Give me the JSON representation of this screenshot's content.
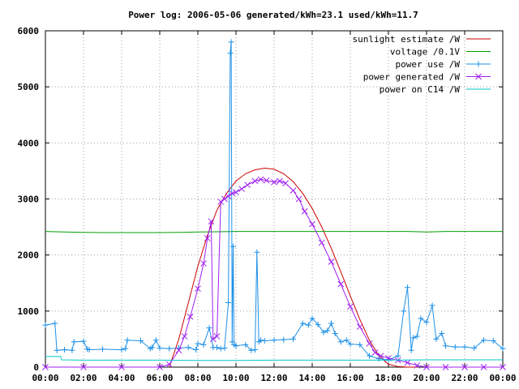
{
  "chart_data": {
    "type": "line",
    "title": "Power log: 2006-05-06 generated/kWh=23.1 used/kWh=11.7",
    "xlabel": "",
    "ylabel": "",
    "xlim": [
      0,
      24
    ],
    "ylim": [
      0,
      6000
    ],
    "x_ticks": [
      "00:00",
      "02:00",
      "04:00",
      "06:00",
      "08:00",
      "10:00",
      "12:00",
      "14:00",
      "16:00",
      "18:00",
      "20:00",
      "22:00",
      "00:00"
    ],
    "y_ticks": [
      "0",
      "1000",
      "2000",
      "3000",
      "4000",
      "5000",
      "6000"
    ],
    "grid": true,
    "legend_position": "top-right",
    "series": [
      {
        "name": "sunlight estimate /W",
        "color": "#cc0000",
        "marker": "none",
        "x": [
          6.5,
          7.0,
          7.5,
          8.0,
          8.5,
          9.0,
          9.5,
          10.0,
          10.5,
          11.0,
          11.5,
          12.0,
          12.5,
          13.0,
          13.5,
          14.0,
          14.5,
          15.0,
          15.5,
          16.0,
          16.5,
          17.0,
          17.5,
          18.0,
          18.5,
          19.0,
          19.5
        ],
        "y": [
          0,
          500,
          1150,
          1800,
          2350,
          2800,
          3100,
          3320,
          3450,
          3520,
          3550,
          3530,
          3450,
          3310,
          3100,
          2830,
          2500,
          2120,
          1700,
          1270,
          850,
          480,
          200,
          50,
          10,
          0,
          0
        ]
      },
      {
        "name": "voltage /0.1V",
        "color": "#00a000",
        "marker": "none",
        "x": [
          0,
          1,
          2,
          3,
          4,
          5,
          6,
          7,
          8,
          9,
          10,
          11,
          12,
          13,
          14,
          15,
          16,
          17,
          18,
          19,
          20,
          21,
          22,
          23,
          24
        ],
        "y": [
          2420,
          2410,
          2405,
          2400,
          2400,
          2400,
          2400,
          2405,
          2410,
          2415,
          2420,
          2420,
          2420,
          2420,
          2420,
          2420,
          2420,
          2420,
          2420,
          2420,
          2410,
          2420,
          2420,
          2420,
          2420
        ]
      },
      {
        "name": "power use /W",
        "color": "#1e90e6",
        "marker": "plus",
        "x": [
          0,
          0.5,
          0.6,
          1.0,
          1.4,
          1.5,
          2.0,
          2.2,
          2.3,
          3.0,
          4.0,
          4.2,
          4.3,
          5.0,
          5.5,
          5.6,
          5.8,
          6.0,
          6.5,
          7.0,
          7.5,
          7.9,
          8.0,
          8.3,
          8.6,
          8.8,
          9.0,
          9.2,
          9.4,
          9.6,
          9.7,
          9.75,
          9.8,
          9.85,
          9.9,
          10.0,
          10.5,
          10.8,
          11.0,
          11.1,
          11.2,
          11.3,
          11.5,
          12.0,
          12.5,
          13.0,
          13.5,
          13.8,
          14.0,
          14.3,
          14.6,
          14.8,
          15.0,
          15.2,
          15.5,
          15.8,
          16.0,
          16.5,
          17.0,
          17.5,
          18.0,
          18.5,
          18.8,
          19.0,
          19.2,
          19.3,
          19.5,
          19.7,
          20.0,
          20.3,
          20.5,
          20.8,
          21.0,
          21.5,
          22.0,
          22.5,
          23.0,
          23.5,
          24.0
        ],
        "y": [
          750,
          780,
          300,
          310,
          300,
          450,
          460,
          320,
          310,
          320,
          310,
          330,
          480,
          470,
          330,
          350,
          480,
          340,
          330,
          340,
          350,
          310,
          420,
          400,
          700,
          350,
          350,
          330,
          340,
          1150,
          5600,
          5800,
          450,
          2150,
          400,
          380,
          400,
          300,
          310,
          2050,
          450,
          480,
          470,
          480,
          490,
          500,
          780,
          750,
          870,
          760,
          620,
          650,
          780,
          600,
          450,
          480,
          410,
          400,
          200,
          150,
          130,
          200,
          1000,
          1420,
          300,
          520,
          550,
          870,
          800,
          1100,
          500,
          600,
          380,
          360,
          360,
          340,
          480,
          470,
          330
        ]
      },
      {
        "name": "power generated /W",
        "color": "#a020f0",
        "marker": "cross",
        "x": [
          0,
          2,
          4,
          6.0,
          6.5,
          7.0,
          7.3,
          7.6,
          8.0,
          8.3,
          8.5,
          8.7,
          8.8,
          9.0,
          9.2,
          9.4,
          9.6,
          9.8,
          10.0,
          10.3,
          10.6,
          11.0,
          11.3,
          11.6,
          12.0,
          12.3,
          12.6,
          13.0,
          13.3,
          13.6,
          14.0,
          14.5,
          15.0,
          15.5,
          16.0,
          16.5,
          17.0,
          17.3,
          17.6,
          18.0,
          18.5,
          19.0,
          19.5,
          20.0,
          21.0,
          22.0,
          23.0,
          24.0
        ],
        "y": [
          0,
          0,
          0,
          0,
          50,
          300,
          550,
          900,
          1400,
          1850,
          2300,
          2600,
          500,
          550,
          2950,
          3000,
          3050,
          3100,
          3120,
          3180,
          3250,
          3320,
          3350,
          3330,
          3300,
          3320,
          3280,
          3150,
          3000,
          2780,
          2550,
          2220,
          1880,
          1480,
          1080,
          720,
          420,
          260,
          200,
          160,
          120,
          80,
          30,
          0,
          0,
          0,
          0,
          0
        ]
      },
      {
        "name": "power on C14 /W",
        "color": "#00c8c8",
        "marker": "none",
        "x": [
          0,
          0.8,
          0.85,
          2,
          4,
          6,
          8,
          10,
          12,
          14,
          16,
          18,
          20,
          22,
          24
        ],
        "y": [
          190,
          190,
          130,
          125,
          125,
          125,
          120,
          120,
          125,
          125,
          125,
          125,
          130,
          130,
          130
        ]
      }
    ]
  }
}
